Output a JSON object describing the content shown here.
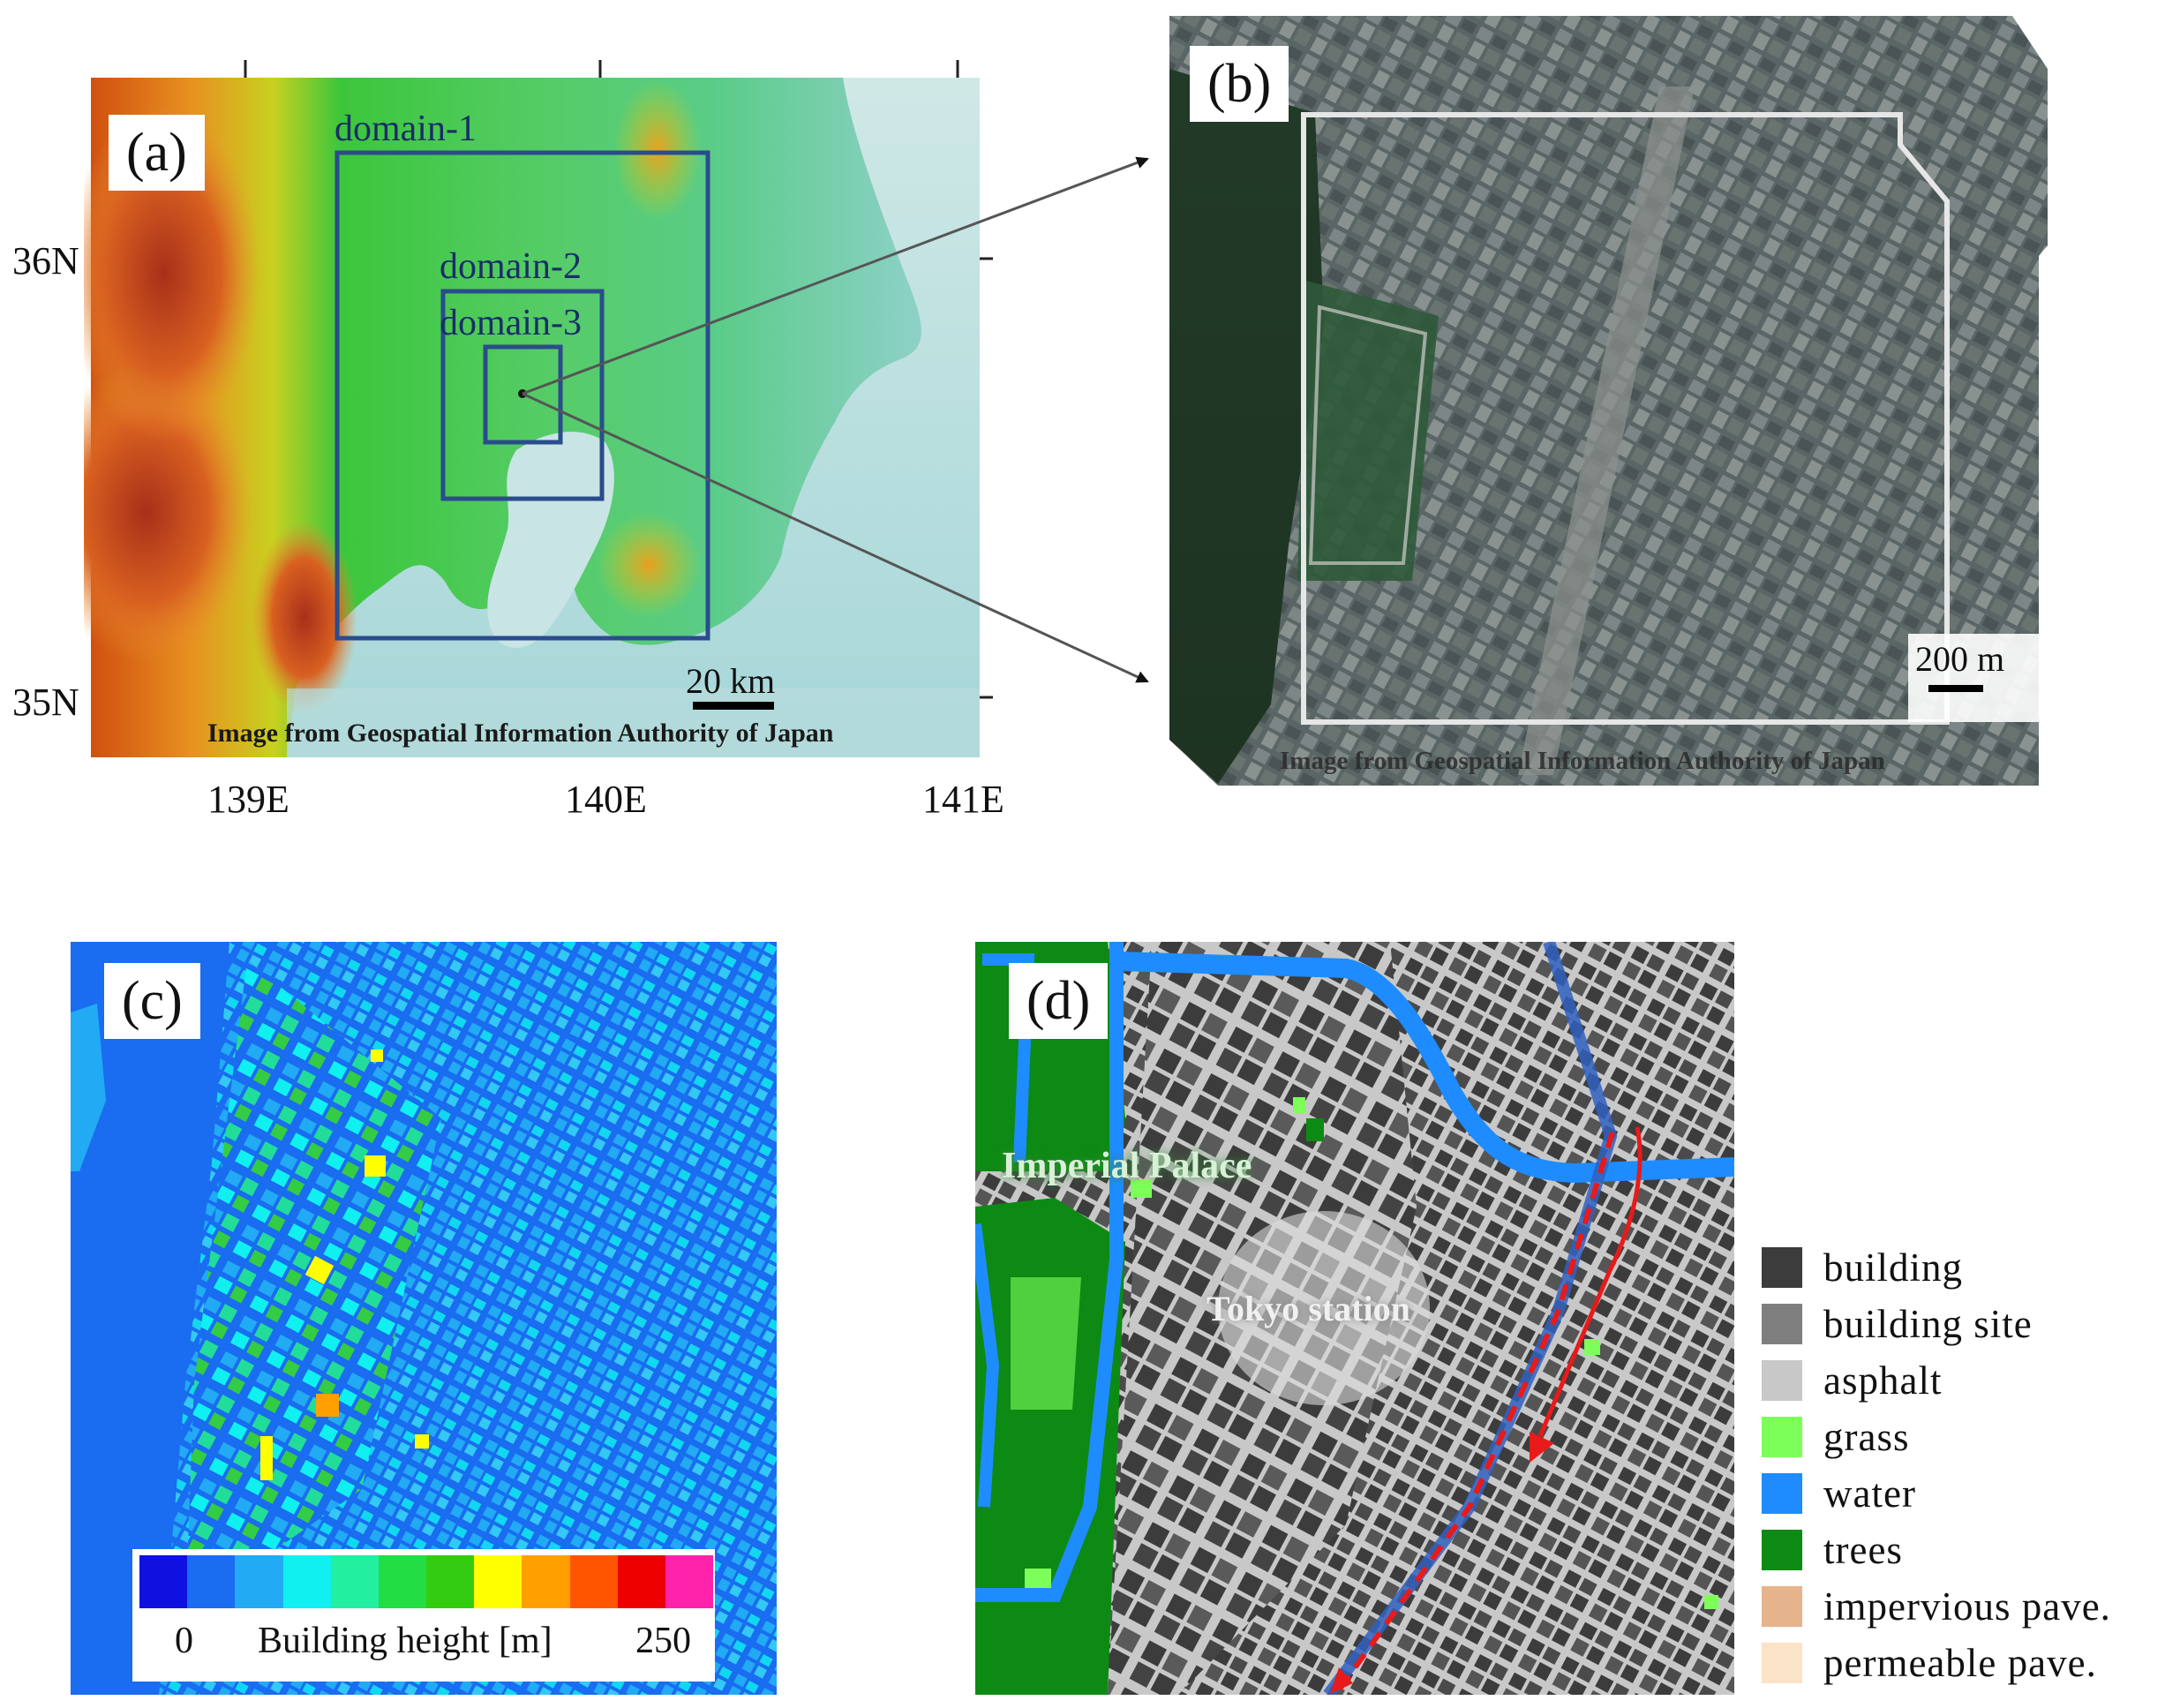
{
  "panel_a": {
    "label": "(a)",
    "domains": [
      "domain-1",
      "domain-2",
      "domain-3"
    ],
    "lon_ticks": [
      "139E",
      "140E",
      "141E"
    ],
    "lat_ticks": [
      "36N",
      "35N"
    ],
    "scale_bar": "20 km",
    "credit": "Image from Geospatial Information Authority of Japan"
  },
  "panel_b": {
    "label": "(b)",
    "scale_bar": "200 m",
    "credit": "Image from Geospatial Information Authority of Japan"
  },
  "panel_c": {
    "label": "(c)",
    "colorbar": {
      "min_label": "0",
      "max_label": "250",
      "title": "Building height [m]",
      "colors": [
        "#1010e0",
        "#1a6cf0",
        "#22aaf5",
        "#11f0f0",
        "#22f0a0",
        "#22dd44",
        "#33cc11",
        "#ffff00",
        "#ffa000",
        "#ff5500",
        "#ee0000",
        "#ff22aa"
      ]
    }
  },
  "panel_d": {
    "label": "(d)",
    "labels": [
      "Imperial Palace",
      "Tokyo station"
    ],
    "legend": [
      {
        "label": "building",
        "color": "#3c3c3c"
      },
      {
        "label": "building site",
        "color": "#7f7f7f"
      },
      {
        "label": "asphalt",
        "color": "#c8c8c8"
      },
      {
        "label": "grass",
        "color": "#7dff5a"
      },
      {
        "label": "water",
        "color": "#1e8cff"
      },
      {
        "label": "trees",
        "color": "#0d8a14"
      },
      {
        "label": "impervious pave.",
        "color": "#e6b48c"
      },
      {
        "label": "permeable pave.",
        "color": "#fbe3c8"
      }
    ]
  }
}
